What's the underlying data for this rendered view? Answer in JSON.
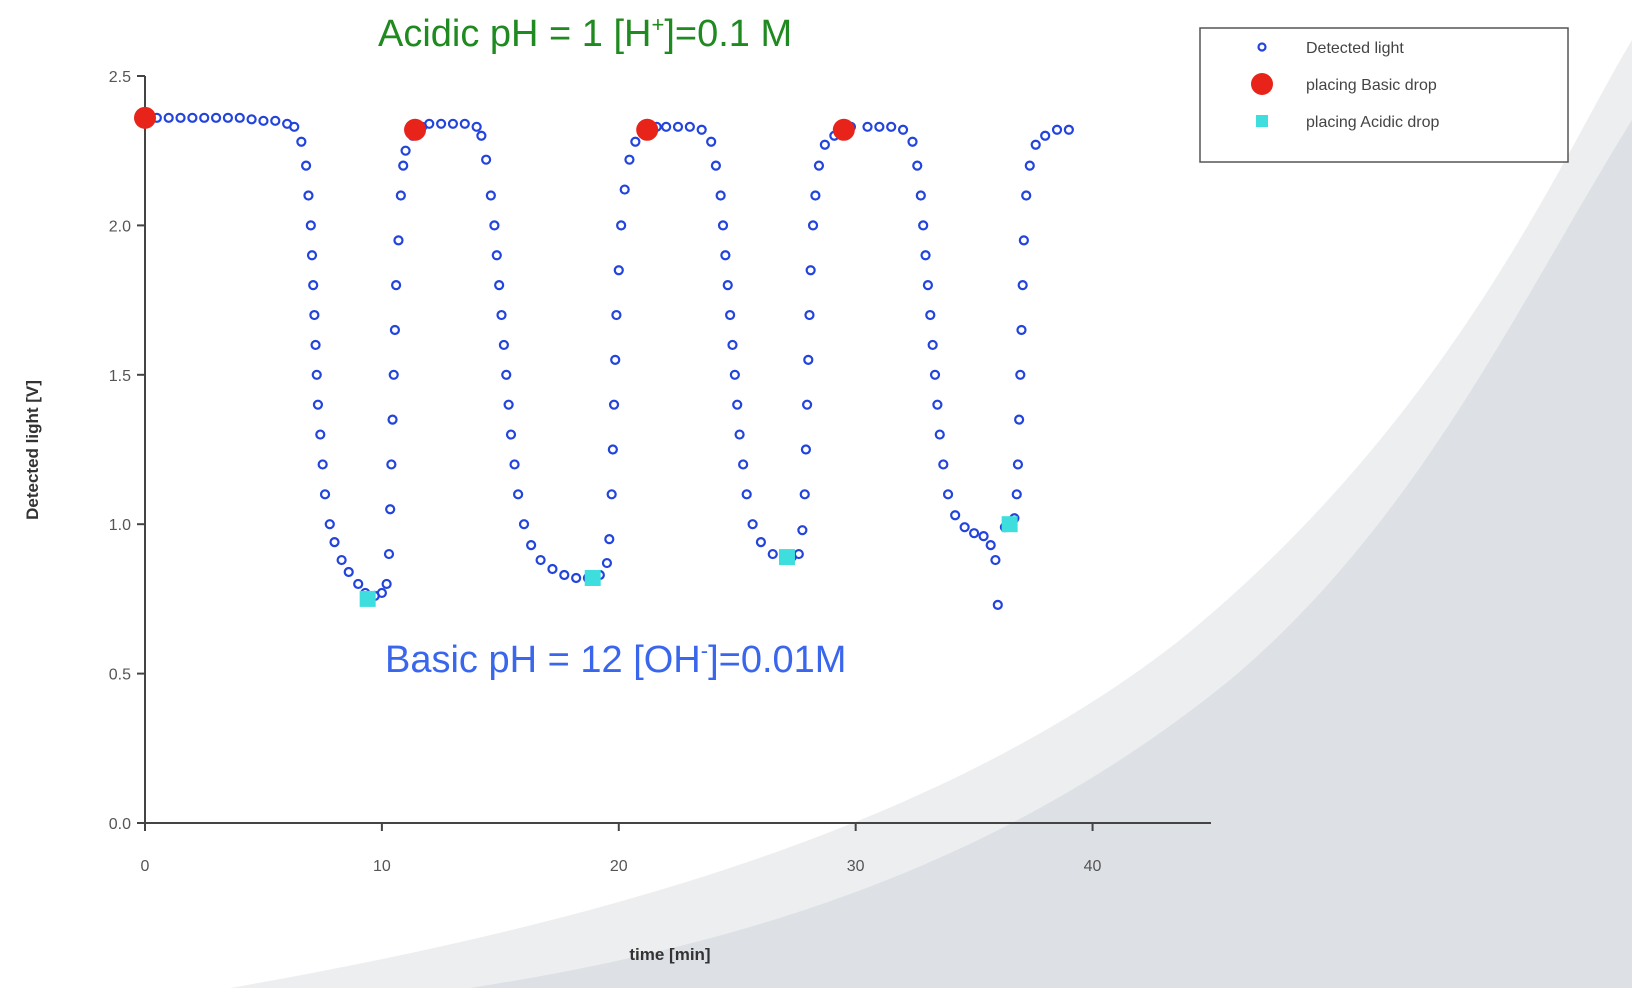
{
  "chart_data": {
    "type": "scatter",
    "xlabel": "time [min]",
    "ylabel": "Detected light [V]",
    "xlim": [
      0,
      45
    ],
    "ylim": [
      0,
      2.5
    ],
    "xticks": [
      0,
      10,
      20,
      30,
      40
    ],
    "yticks": [
      {
        "value": 0,
        "label": "0.0"
      },
      {
        "value": 0.5,
        "label": "0.5"
      },
      {
        "value": 1,
        "label": "1.0"
      },
      {
        "value": 1.5,
        "label": "1.5"
      },
      {
        "value": 2,
        "label": "2.0"
      },
      {
        "value": 2.5,
        "label": "2.5"
      }
    ],
    "legend": "upper right",
    "series": [
      {
        "name": "Detected light",
        "color": "#2244dd",
        "marker": "open-circle",
        "x": [
          0,
          0.5,
          1,
          1.5,
          2,
          2.5,
          3,
          3.5,
          4,
          4.5,
          5,
          5.5,
          6,
          6.3,
          6.6,
          6.8,
          6.9,
          7,
          7.05,
          7.1,
          7.15,
          7.2,
          7.25,
          7.3,
          7.4,
          7.5,
          7.6,
          7.8,
          8,
          8.3,
          8.6,
          9,
          9.3,
          9.7,
          10,
          10.2,
          10.3,
          10.35,
          10.4,
          10.45,
          10.5,
          10.55,
          10.6,
          10.7,
          10.8,
          10.9,
          11,
          11.3,
          11.7,
          12,
          12.5,
          13,
          13.5,
          14,
          14.2,
          14.4,
          14.6,
          14.75,
          14.85,
          14.95,
          15.05,
          15.15,
          15.25,
          15.35,
          15.45,
          15.6,
          15.75,
          16,
          16.3,
          16.7,
          17.2,
          17.7,
          18.2,
          18.7,
          19.2,
          19.5,
          19.6,
          19.7,
          19.75,
          19.8,
          19.85,
          19.9,
          20,
          20.1,
          20.25,
          20.45,
          20.7,
          21,
          21.6,
          22,
          22.5,
          23,
          23.5,
          23.9,
          24.1,
          24.3,
          24.4,
          24.5,
          24.6,
          24.7,
          24.8,
          24.9,
          25,
          25.1,
          25.25,
          25.4,
          25.65,
          26,
          26.5,
          27.3,
          27.6,
          27.75,
          27.85,
          27.9,
          27.95,
          28,
          28.05,
          28.1,
          28.2,
          28.3,
          28.45,
          28.7,
          29.1,
          29.8,
          30.5,
          31,
          31.5,
          32,
          32.4,
          32.6,
          32.75,
          32.85,
          32.95,
          33.05,
          33.15,
          33.25,
          33.35,
          33.45,
          33.55,
          33.7,
          33.9,
          34.2,
          34.6,
          35,
          35.4,
          35.7,
          35.9,
          36,
          36.3,
          36.7,
          36.8,
          36.85,
          36.9,
          36.95,
          37,
          37.05,
          37.1,
          37.2,
          37.35,
          37.6,
          38,
          38.5,
          39
        ],
        "values": [
          2.36,
          2.36,
          2.36,
          2.36,
          2.36,
          2.36,
          2.36,
          2.36,
          2.36,
          2.355,
          2.35,
          2.35,
          2.34,
          2.33,
          2.28,
          2.2,
          2.1,
          2.0,
          1.9,
          1.8,
          1.7,
          1.6,
          1.5,
          1.4,
          1.3,
          1.2,
          1.1,
          1.0,
          0.94,
          0.88,
          0.84,
          0.8,
          0.77,
          0.76,
          0.77,
          0.8,
          0.9,
          1.05,
          1.2,
          1.35,
          1.5,
          1.65,
          1.8,
          1.95,
          2.1,
          2.2,
          2.25,
          2.3,
          2.33,
          2.34,
          2.34,
          2.34,
          2.34,
          2.33,
          2.3,
          2.22,
          2.1,
          2.0,
          1.9,
          1.8,
          1.7,
          1.6,
          1.5,
          1.4,
          1.3,
          1.2,
          1.1,
          1.0,
          0.93,
          0.88,
          0.85,
          0.83,
          0.82,
          0.82,
          0.83,
          0.87,
          0.95,
          1.1,
          1.25,
          1.4,
          1.55,
          1.7,
          1.85,
          2.0,
          2.12,
          2.22,
          2.28,
          2.31,
          2.33,
          2.33,
          2.33,
          2.33,
          2.32,
          2.28,
          2.2,
          2.1,
          2.0,
          1.9,
          1.8,
          1.7,
          1.6,
          1.5,
          1.4,
          1.3,
          1.2,
          1.1,
          1.0,
          0.94,
          0.9,
          0.89,
          0.9,
          0.98,
          1.1,
          1.25,
          1.4,
          1.55,
          1.7,
          1.85,
          2.0,
          2.1,
          2.2,
          2.27,
          2.3,
          2.33,
          2.33,
          2.33,
          2.33,
          2.32,
          2.28,
          2.2,
          2.1,
          2.0,
          1.9,
          1.8,
          1.7,
          1.6,
          1.5,
          1.4,
          1.3,
          1.2,
          1.1,
          1.03,
          0.99,
          0.97,
          0.96,
          0.93,
          0.88,
          0.73,
          0.99,
          1.02,
          1.1,
          1.2,
          1.35,
          1.5,
          1.65,
          1.8,
          1.95,
          2.1,
          2.2,
          2.27,
          2.3,
          2.32,
          2.32
        ]
      },
      {
        "name": "placing Basic drop",
        "color": "#e8231a",
        "marker": "filled-circle",
        "x": [
          0,
          11.4,
          21.2,
          29.5
        ],
        "values": [
          2.36,
          2.32,
          2.32,
          2.32
        ]
      },
      {
        "name": "placing Acidic drop",
        "color": "#3fdede",
        "marker": "square",
        "x": [
          9.4,
          18.9,
          27.1,
          36.5
        ],
        "values": [
          0.75,
          0.82,
          0.89,
          1.0
        ]
      }
    ],
    "annotations": [
      {
        "color": "#1f8a1f",
        "parts": [
          {
            "text": "Acidic pH = 1   [H"
          },
          {
            "text": "+",
            "sup": true
          },
          {
            "text": "]=0.1 M"
          }
        ]
      },
      {
        "color": "#3a66ee",
        "parts": [
          {
            "text": "Basic pH = 12   [OH"
          },
          {
            "text": "-",
            "sup": true
          },
          {
            "text": "]=0.01M"
          }
        ]
      }
    ]
  }
}
